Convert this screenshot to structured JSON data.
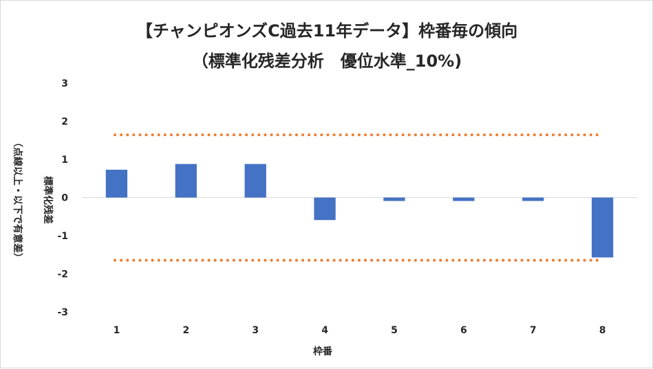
{
  "chart_data": {
    "type": "bar",
    "title": [
      "【チャンピオンズC過去11年データ】枠番毎の傾向",
      "（標準化残差分析　優位水準_10%)"
    ],
    "xlabel": "枠番",
    "ylabel": [
      "標準化残差",
      "（点線以上・以下で有意差）"
    ],
    "categories": [
      "1",
      "2",
      "3",
      "4",
      "5",
      "6",
      "7",
      "8"
    ],
    "values": [
      0.73,
      0.88,
      0.88,
      -0.59,
      -0.09,
      -0.09,
      -0.09,
      -1.57
    ],
    "ylim": [
      -3,
      3
    ],
    "yticks": [
      3,
      2,
      1,
      0,
      -1,
      -2,
      -3
    ],
    "threshold": 1.645,
    "grid": false,
    "colors": {
      "bar": "#4472c4",
      "threshold": "#ed7d31",
      "axis": "#d9d9d9",
      "text": "#262626"
    }
  }
}
